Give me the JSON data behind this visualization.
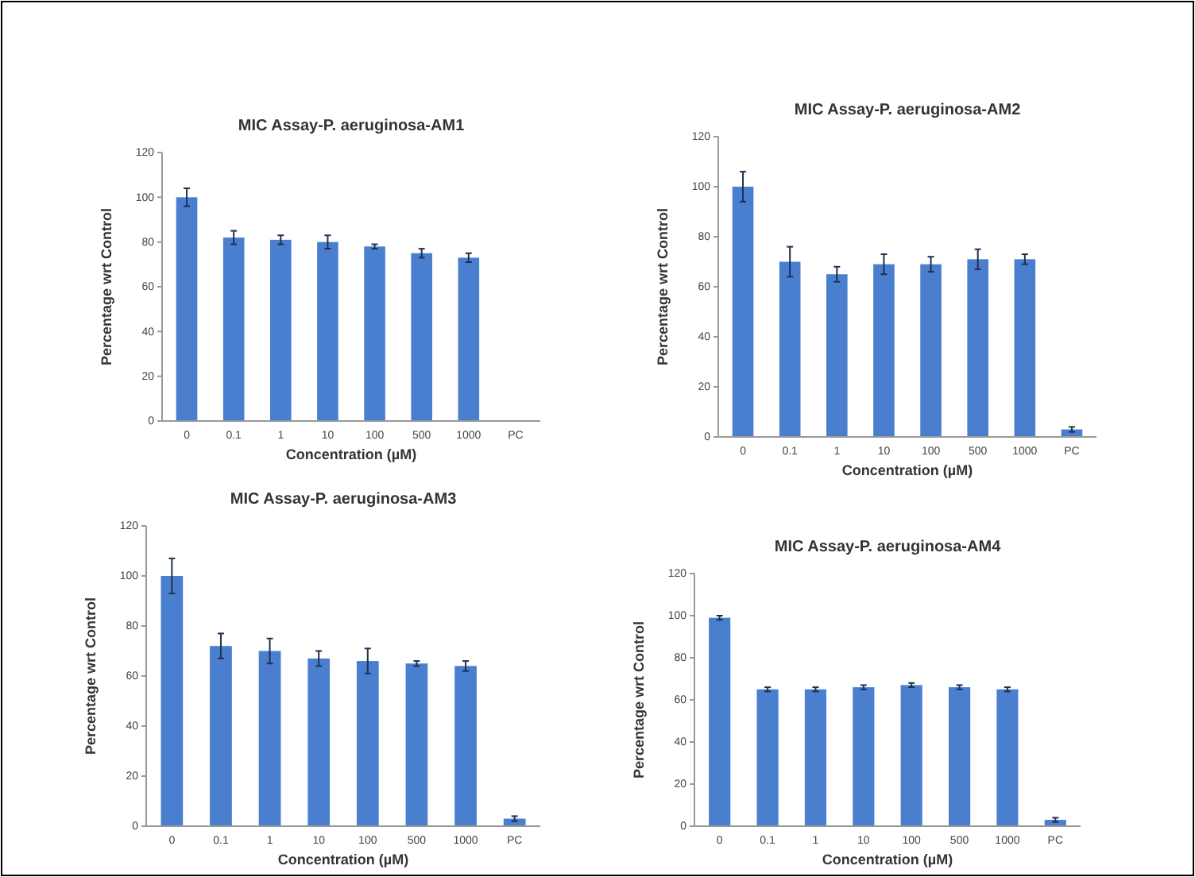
{
  "chart_data": [
    {
      "type": "bar",
      "title": "MIC Assay-P. aeruginosa-AM1",
      "xlabel": "Concentration (µM)",
      "ylabel": "Percentage wrt Control",
      "categories": [
        "0",
        "0.1",
        "1",
        "10",
        "100",
        "500",
        "1000",
        "PC"
      ],
      "color": "#4a7fd0",
      "ylim": [
        0,
        120
      ],
      "yticks": [
        0,
        20,
        40,
        60,
        80,
        100,
        120
      ],
      "grid": false,
      "values": [
        100,
        82,
        81,
        80,
        78,
        75,
        73,
        0
      ],
      "errors": [
        4,
        3,
        2,
        3,
        1,
        2,
        2,
        null
      ]
    },
    {
      "type": "bar",
      "title": "MIC Assay-P. aeruginosa-AM2",
      "xlabel": "Concentration (µM)",
      "ylabel": "Percentage wrt Control",
      "categories": [
        "0",
        "0.1",
        "1",
        "10",
        "100",
        "500",
        "1000",
        "PC"
      ],
      "color": "#4a7fd0",
      "ylim": [
        0,
        120
      ],
      "yticks": [
        0,
        20,
        40,
        60,
        80,
        100,
        120
      ],
      "grid": false,
      "values": [
        100,
        70,
        65,
        69,
        69,
        71,
        71,
        3
      ],
      "errors": [
        6,
        6,
        3,
        4,
        3,
        4,
        2,
        1
      ]
    },
    {
      "type": "bar",
      "title": "MIC Assay-P. aeruginosa-AM3",
      "xlabel": "Concentration (µM)",
      "ylabel": "Percentage wrt Control",
      "categories": [
        "0",
        "0.1",
        "1",
        "10",
        "100",
        "500",
        "1000",
        "PC"
      ],
      "color": "#4a7fd0",
      "ylim": [
        0,
        120
      ],
      "yticks": [
        0,
        20,
        40,
        60,
        80,
        100,
        120
      ],
      "grid": false,
      "values": [
        100,
        72,
        70,
        67,
        66,
        65,
        64,
        3
      ],
      "errors": [
        7,
        5,
        5,
        3,
        5,
        1,
        2,
        1
      ]
    },
    {
      "type": "bar",
      "title": "MIC Assay-P. aeruginosa-AM4",
      "xlabel": "Concentration (µM)",
      "ylabel": "Percentage wrt Control",
      "categories": [
        "0",
        "0.1",
        "1",
        "10",
        "100",
        "500",
        "1000",
        "PC"
      ],
      "color": "#4a7fd0",
      "ylim": [
        0,
        120
      ],
      "yticks": [
        0,
        20,
        40,
        60,
        80,
        100,
        120
      ],
      "grid": false,
      "values": [
        99,
        65,
        65,
        66,
        67,
        66,
        65,
        3
      ],
      "errors": [
        1,
        1,
        1,
        1,
        1,
        1,
        1,
        1
      ]
    }
  ]
}
